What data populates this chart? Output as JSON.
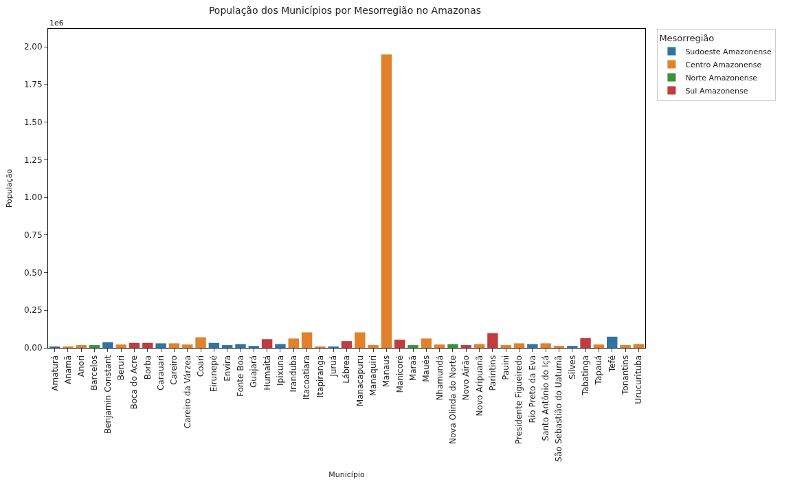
{
  "chart_data": {
    "type": "bar",
    "title": "População dos Municípios por Mesorregião no Amazonas",
    "xlabel": "Município",
    "ylabel": "População",
    "legend_title": "Mesorregião",
    "legend": "top right",
    "categories": [
      "Amaturá",
      "Anamã",
      "Anori",
      "Barcelos",
      "Benjamin Constant",
      "Beruri",
      "Boca do Acre",
      "Borba",
      "Carauari",
      "Careiro",
      "Careiro da Várzea",
      "Coari",
      "Eirunepé",
      "Envira",
      "Fonte Boa",
      "Guajará",
      "Humaitá",
      "Ipixuna",
      "Iranduba",
      "Itacoatiara",
      "Itapiranga",
      "Juruá",
      "Lábrea",
      "Manacapuru",
      "Manaquiri",
      "Manaus",
      "Manicoré",
      "Maraã",
      "Maués",
      "Nhamundá",
      "Nova Olinda do Norte",
      "Novo Airão",
      "Novo Aripuanã",
      "Parintins",
      "Pauini",
      "Presidente Figueiredo",
      "Rio Preto da Eva",
      "Santo Antônio do Içá",
      "São Sebastião do Uatumã",
      "Silves",
      "Tabatinga",
      "Tapauá",
      "Tefé",
      "Tonantins",
      "Urucurituba"
    ],
    "series": [
      {
        "name": "Sudoeste Amazonense",
        "color": "#3274a1",
        "values": [
          0.009,
          null,
          null,
          null,
          0.037,
          null,
          null,
          null,
          0.03,
          null,
          null,
          null,
          0.033,
          0.018,
          0.025,
          0.013,
          null,
          0.025,
          null,
          null,
          null,
          0.009,
          null,
          null,
          null,
          null,
          null,
          null,
          null,
          null,
          null,
          null,
          null,
          null,
          null,
          null,
          0.025,
          null,
          null,
          0.013,
          null,
          null,
          0.074,
          null,
          null
        ]
      },
      {
        "name": "Centro Amazonense",
        "color": "#e1812c",
        "values": [
          null,
          0.009,
          0.018,
          null,
          null,
          0.022,
          null,
          null,
          null,
          0.03,
          0.022,
          0.07,
          null,
          null,
          null,
          null,
          null,
          null,
          0.062,
          0.103,
          0.009,
          null,
          null,
          0.103,
          0.018,
          1.95,
          null,
          null,
          0.062,
          0.022,
          null,
          null,
          0.025,
          null,
          0.018,
          0.03,
          null,
          0.03,
          0.013,
          null,
          null,
          0.022,
          null,
          0.018,
          0.025
        ]
      },
      {
        "name": "Norte Amazonense",
        "color": "#3a923a",
        "values": [
          null,
          null,
          null,
          0.018,
          null,
          null,
          null,
          null,
          null,
          null,
          null,
          null,
          null,
          null,
          null,
          null,
          null,
          null,
          null,
          null,
          null,
          null,
          null,
          null,
          null,
          null,
          null,
          0.018,
          null,
          null,
          0.025,
          null,
          null,
          null,
          null,
          null,
          null,
          null,
          null,
          null,
          null,
          null,
          null,
          null,
          null
        ]
      },
      {
        "name": "Sul Amazonense",
        "color": "#c03d3e",
        "values": [
          null,
          null,
          null,
          null,
          null,
          null,
          0.033,
          0.033,
          null,
          null,
          null,
          null,
          null,
          null,
          null,
          null,
          0.058,
          null,
          null,
          null,
          null,
          null,
          0.045,
          null,
          null,
          null,
          0.054,
          null,
          null,
          null,
          null,
          0.018,
          null,
          0.098,
          null,
          null,
          null,
          null,
          null,
          null,
          0.065,
          null,
          null,
          null,
          null
        ]
      }
    ],
    "ylim": [
      0,
      2.12
    ],
    "yticks": [
      {
        "value": 0,
        "label": "0.00"
      },
      0.25,
      {
        "value": 0.5,
        "label": "0.50"
      },
      0.75,
      {
        "value": 1,
        "label": "1.00"
      },
      1.25,
      {
        "value": 1.5,
        "label": "1.50"
      },
      1.75,
      {
        "value": 2,
        "label": "2.00"
      }
    ],
    "annotations": [
      "1e6"
    ]
  }
}
